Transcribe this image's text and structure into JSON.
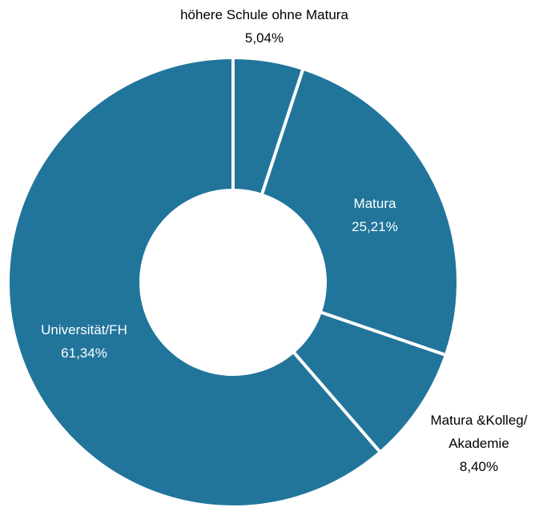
{
  "chart_data": {
    "type": "donut",
    "categories": [
      "höhere Schule ohne Matura",
      "Matura",
      "Matura &Kolleg/ Akademie",
      "Universität/FH"
    ],
    "values": [
      5.04,
      25.21,
      8.4,
      61.34
    ],
    "value_labels": [
      "5,04%",
      "25,21%",
      "8,40%",
      "61,34%"
    ],
    "color": "#21759b"
  }
}
